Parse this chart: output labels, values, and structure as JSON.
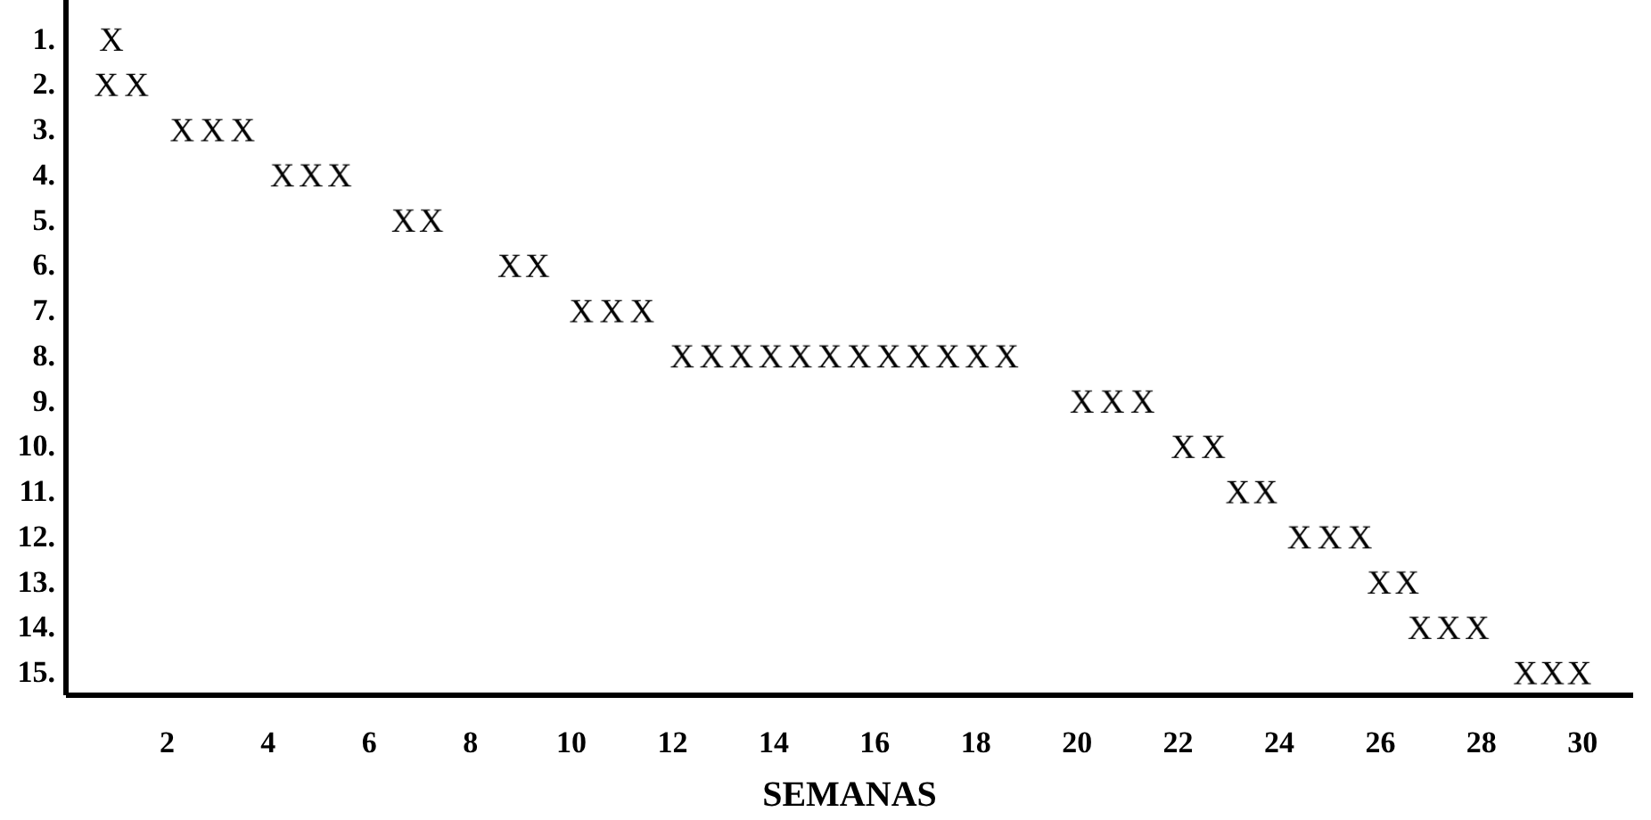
{
  "chart_data": {
    "type": "bar",
    "orientation": "horizontal",
    "xlabel": "SEMANAS",
    "categories": [
      "1.",
      "2.",
      "3.",
      "4.",
      "5.",
      "6.",
      "7.",
      "8.",
      "9.",
      "10.",
      "11.",
      "12.",
      "13.",
      "14.",
      "15."
    ],
    "base": [
      0.5,
      0.5,
      2.0,
      4.0,
      6.4,
      8.5,
      9.9,
      11.9,
      19.8,
      21.8,
      22.9,
      24.1,
      25.7,
      26.5,
      28.6
    ],
    "values": [
      0.8,
      1.2,
      1.8,
      1.7,
      1.1,
      1.1,
      1.8,
      7.0,
      1.8,
      1.2,
      1.1,
      1.8,
      1.1,
      1.7,
      1.6
    ],
    "color": "#000000",
    "xlim": [
      0,
      31
    ],
    "xticks": [
      2,
      4,
      6,
      8,
      10,
      12,
      14,
      16,
      18,
      20,
      22,
      24,
      26,
      28,
      30
    ],
    "grid": false
  }
}
